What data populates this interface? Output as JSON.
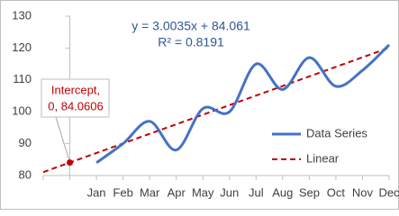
{
  "chart_data": {
    "type": "line",
    "categories": [
      "Jan",
      "Feb",
      "Mar",
      "Apr",
      "May",
      "Jun",
      "Jul",
      "Aug",
      "Sep",
      "Oct",
      "Nov",
      "Dec"
    ],
    "series": [
      {
        "name": "Data Series",
        "color": "#4472c4",
        "values": [
          84,
          90,
          97,
          88,
          101,
          100,
          115,
          107,
          117,
          108,
          113,
          121
        ]
      }
    ],
    "trendline": {
      "name": "Linear",
      "color": "#c00000",
      "slope": 3.0035,
      "intercept": 84.061,
      "equation": "y = 3.0035x + 84.061",
      "r_squared_label": "R² = 0.8191"
    },
    "annotation": {
      "lines": [
        "Intercept,",
        "0, 84.0606"
      ],
      "x": 0,
      "y": 84.0606
    },
    "xlim": [
      -1,
      12
    ],
    "ylim": [
      80,
      130
    ],
    "yticks": [
      80,
      90,
      100,
      110,
      120,
      130
    ],
    "legend": "lower right"
  }
}
